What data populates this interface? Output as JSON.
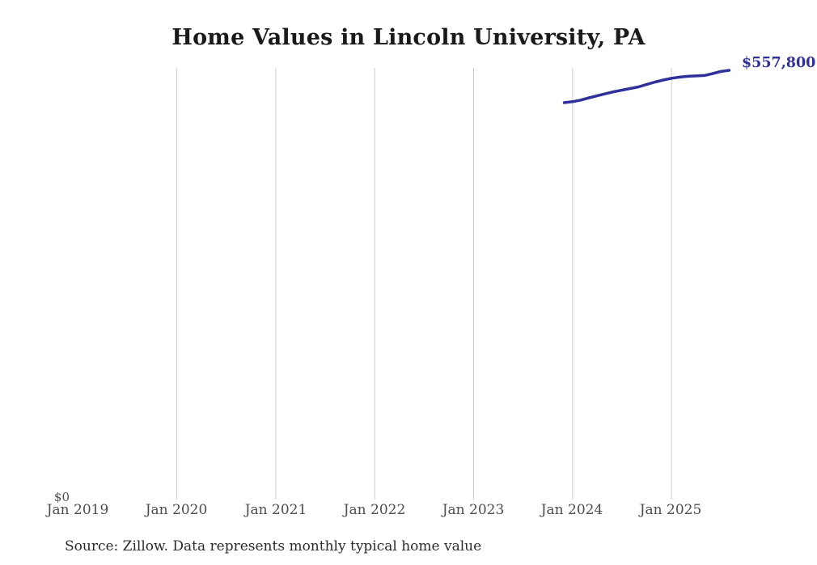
{
  "title": "Home Values in Lincoln University, PA",
  "source_note": "Source: Zillow. Data represents monthly typical home value",
  "y_zero_label": "$0",
  "end_value_label": "$557,800",
  "colors": {
    "line": "#30309c",
    "end_label": "#30309c",
    "gridline": "#cccccc",
    "axis_text": "#4d4d4d",
    "title_text": "#1a1a1a",
    "source_text": "#2b2b2b",
    "background": "#ffffff"
  },
  "chart_data": {
    "type": "line",
    "title": "Home Values in Lincoln University, PA",
    "x": [
      "2023-12",
      "2024-01",
      "2024-02",
      "2024-03",
      "2024-04",
      "2024-05",
      "2024-06",
      "2024-07",
      "2024-08",
      "2024-09",
      "2024-10",
      "2024-11",
      "2024-12",
      "2025-01",
      "2025-02",
      "2025-03",
      "2025-04",
      "2025-05",
      "2025-06",
      "2025-07",
      "2025-08"
    ],
    "values": [
      515800,
      517000,
      519100,
      522100,
      524800,
      527400,
      530000,
      532100,
      534200,
      536300,
      539500,
      542600,
      545200,
      547400,
      549000,
      550000,
      550600,
      551100,
      553600,
      556300,
      557800
    ],
    "end_value_label": "$557,800",
    "x_ticks": [
      {
        "label": "Jan 2019",
        "gridline": false
      },
      {
        "label": "Jan 2020",
        "gridline": true
      },
      {
        "label": "Jan 2021",
        "gridline": true
      },
      {
        "label": "Jan 2022",
        "gridline": true
      },
      {
        "label": "Jan 2023",
        "gridline": true
      },
      {
        "label": "Jan 2024",
        "gridline": true
      },
      {
        "label": "Jan 2025",
        "gridline": true
      }
    ],
    "y_tick_labels": [
      "$0"
    ],
    "ylim": [
      0,
      560000
    ],
    "grid": "vertical-only",
    "legend": false
  }
}
